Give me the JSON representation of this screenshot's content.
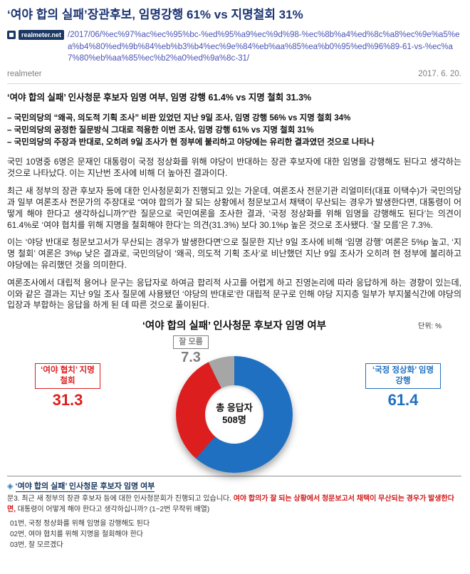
{
  "page": {
    "title": "‘여야 합의 실패’장관후보, 임명강행 61% vs 지명철회 31%",
    "source_badge": "realmeter.net",
    "url": "/2017/06/%ec%97%ac%ec%95%bc-%ed%95%a9%ec%9d%98-%ec%8b%a4%ed%8c%a8%ec%9e%a5%ea%b4%80%ed%9b%84%eb%b3%b4%ec%9e%84%eb%aa%85%ea%b0%95%ed%96%89-61-vs-%ec%a7%80%eb%aa%85%ec%b2%a0%ed%9a%8c-31/",
    "source_name": "realmeter",
    "date": "2017. 6. 20."
  },
  "colors": {
    "title_navy": "#1b3472",
    "link": "#4a54b5",
    "chart_blue": "#1f70c1",
    "chart_red": "#dc1e1e",
    "chart_gray": "#a6a6a6",
    "question_red": "#d01b1b"
  },
  "article": {
    "headline": "‘여야 합의 실패’ 인사청문 후보자 임명 여부, 임명 강행 61.4% vs 지명 철회 31.3%",
    "bullets": [
      "– 국민의당의 “왜곡, 의도적 기획 조사” 비판 있었던 지난 9일 조사, 임명 강행 56% vs 지명 철회 34%",
      "– 국민의당의 공정한 질문방식 그대로 적용한 이번 조사, 임명 강행 61% vs 지명 철회 31%",
      "– 국민의당의 주장과 반대로, 오히려 9일 조사가 현 정부에 불리하고 야당에는 유리한 결과였던 것으로 나타나"
    ],
    "paragraphs": [
      "국민 10명중 6명은 문재인 대통령이 국정 정상화를 위해 야당이 반대하는 장관 후보자에 대한 임명을 강행해도 된다고 생각하는 것으로 나타났다. 이는 지난번 조사에 비해 더 높아진 결과이다.",
      "최근 새 정부의 장관 후보자 등에 대한 인사청문회가 진행되고 있는 가운데, 여론조사 전문기관 리얼미터(대표 이택수)가 국민의당과 일부 여론조사 전문가의 주장대로 “여야 합의가 잘 되는 상황에서 청문보고서 채택이 무산되는 경우가 발생한다면, 대통령이 어떻게 해야 한다고 생각하십니까?”란 질문으로 국민여론을 조사한 결과, ‘국정 정상화를 위해 임명을 강행해도 된다’는 의견이 61.4%로 ‘여야 협치를 위해 지명을 철회해야 한다’는 의견(31.3%) 보다 30.1%p 높은 것으로 조사됐다. ‘잘 모름’은 7.3%.",
      "이는 ‘야당 반대로 청문보고서가 무산되는 경우가 발생한다면’으로 질문한 지난 9일 조사에 비해 ‘임명 강행’ 여론은 5%p 높고, ‘지명 철회’ 여론은 3%p 낮은 결과로, 국민의당이 ‘왜곡, 의도적 기획 조사’로 비난했던 지난 9일 조사가 오히려 현 정부에 불리하고 야당에는 유리했던 것을 의미한다.",
      "여론조사에서 대립적 용어나 문구는 응답자로 하여금 합리적 사고를 어렵게 하고 진영논리에 따라 응답하게 하는 경향이 있는데, 이와 같은 결과는 지난 9일 조사 질문에 사용됐던 ‘야당의 반대로’란 대립적 문구로 인해 야당 지지층 일부가 부지불식간에 야당의 입장과 부합하는 응답을 하게 된 데 따른 것으로 풀이된다."
    ]
  },
  "chart_data": {
    "type": "pie",
    "subtype": "donut",
    "title": "‘여야 합의 실패’ 인사청문 후보자 임명 여부",
    "unit_label": "단위: %",
    "center_label": "총 응답자",
    "center_value": "508명",
    "legend_position": "callouts",
    "slices": [
      {
        "label": "‘국정 정상화’ 임명 강행",
        "value": 61.4,
        "color": "#1f70c1"
      },
      {
        "label": "‘여야 협치’ 지명 철회",
        "value": 31.3,
        "color": "#dc1e1e"
      },
      {
        "label": "잘 모름",
        "value": 7.3,
        "color": "#a6a6a6",
        "label_color": "#7f7f7f"
      }
    ]
  },
  "question": {
    "diamond": "◈",
    "heading": "‘여야 합의 실패’ 인사청문 후보자 임명 여부",
    "prefix": "문3. 최근 새 정부의 장관 후보자 등에 대한 인사청문회가 진행되고 있습니다. ",
    "highlight": "여야 합의가 잘 되는 상황에서 청문보고서 채택이 무산되는 경우가 발생한다면,",
    "suffix": " 대통령이 어떻게 해야 한다고 생각하십니까? (1~2번 무작위 배열)",
    "options": [
      "01번, 국정 정상화를 위해 임명을 강행해도 된다",
      "02번, 여야 협치를 위해 지명을 철회해야 한다",
      "03번, 잘 모르겠다"
    ]
  }
}
